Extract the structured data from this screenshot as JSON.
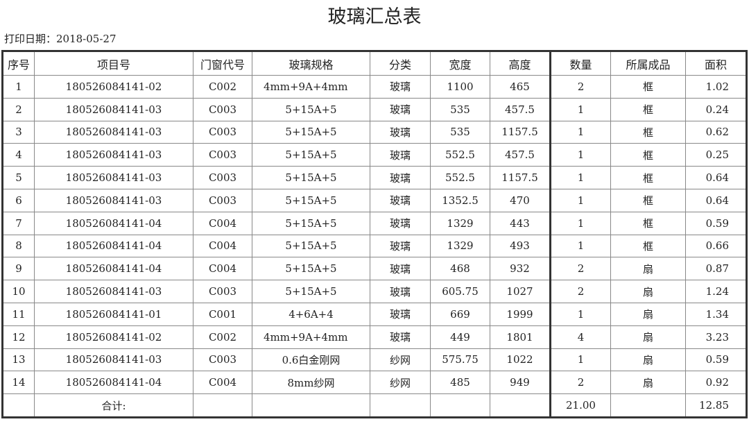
{
  "title": "玻璃汇总表",
  "print_date": "打印日期：2018-05-27",
  "columns": [
    "序号",
    "项目号",
    "门窗代号",
    "玻璃规格",
    "分类",
    "宽度",
    "高度",
    "数量",
    "所属成品",
    "面积"
  ],
  "rows": [
    [
      "1",
      "180526084141-02",
      "C002",
      "4mm+9A+4mm",
      "玻璃",
      "1100",
      "465",
      "2",
      "框",
      "1.02"
    ],
    [
      "2",
      "180526084141-03",
      "C003",
      "5+15A+5",
      "玻璃",
      "535",
      "457.5",
      "1",
      "框",
      "0.24"
    ],
    [
      "3",
      "180526084141-03",
      "C003",
      "5+15A+5",
      "玻璃",
      "535",
      "1157.5",
      "1",
      "框",
      "0.62"
    ],
    [
      "4",
      "180526084141-03",
      "C003",
      "5+15A+5",
      "玻璃",
      "552.5",
      "457.5",
      "1",
      "框",
      "0.25"
    ],
    [
      "5",
      "180526084141-03",
      "C003",
      "5+15A+5",
      "玻璃",
      "552.5",
      "1157.5",
      "1",
      "框",
      "0.64"
    ],
    [
      "6",
      "180526084141-03",
      "C003",
      "5+15A+5",
      "玻璃",
      "1352.5",
      "470",
      "1",
      "框",
      "0.64"
    ],
    [
      "7",
      "180526084141-04",
      "C004",
      "5+15A+5",
      "玻璃",
      "1329",
      "443",
      "1",
      "框",
      "0.59"
    ],
    [
      "8",
      "180526084141-04",
      "C004",
      "5+15A+5",
      "玻璃",
      "1329",
      "493",
      "1",
      "框",
      "0.66"
    ],
    [
      "9",
      "180526084141-04",
      "C004",
      "5+15A+5",
      "玻璃",
      "468",
      "932",
      "2",
      "扇",
      "0.87"
    ],
    [
      "10",
      "180526084141-03",
      "C003",
      "5+15A+5",
      "玻璃",
      "605.75",
      "1027",
      "2",
      "扇",
      "1.24"
    ],
    [
      "11",
      "180526084141-01",
      "C001",
      "4+6A+4",
      "玻璃",
      "669",
      "1999",
      "1",
      "扇",
      "1.34"
    ],
    [
      "12",
      "180526084141-02",
      "C002",
      "4mm+9A+4mm",
      "玻璃",
      "449",
      "1801",
      "4",
      "扇",
      "3.23"
    ],
    [
      "13",
      "180526084141-03",
      "C003",
      "0.6白金刚网",
      "纱网",
      "575.75",
      "1022",
      "1",
      "扇",
      "0.59"
    ],
    [
      "14",
      "180526084141-04",
      "C004",
      "8mm纱网",
      "纱网",
      "485",
      "949",
      "2",
      "扇",
      "0.92"
    ]
  ],
  "total": {
    "label": "合计:",
    "quantity": "21.00",
    "area": "12.85"
  }
}
